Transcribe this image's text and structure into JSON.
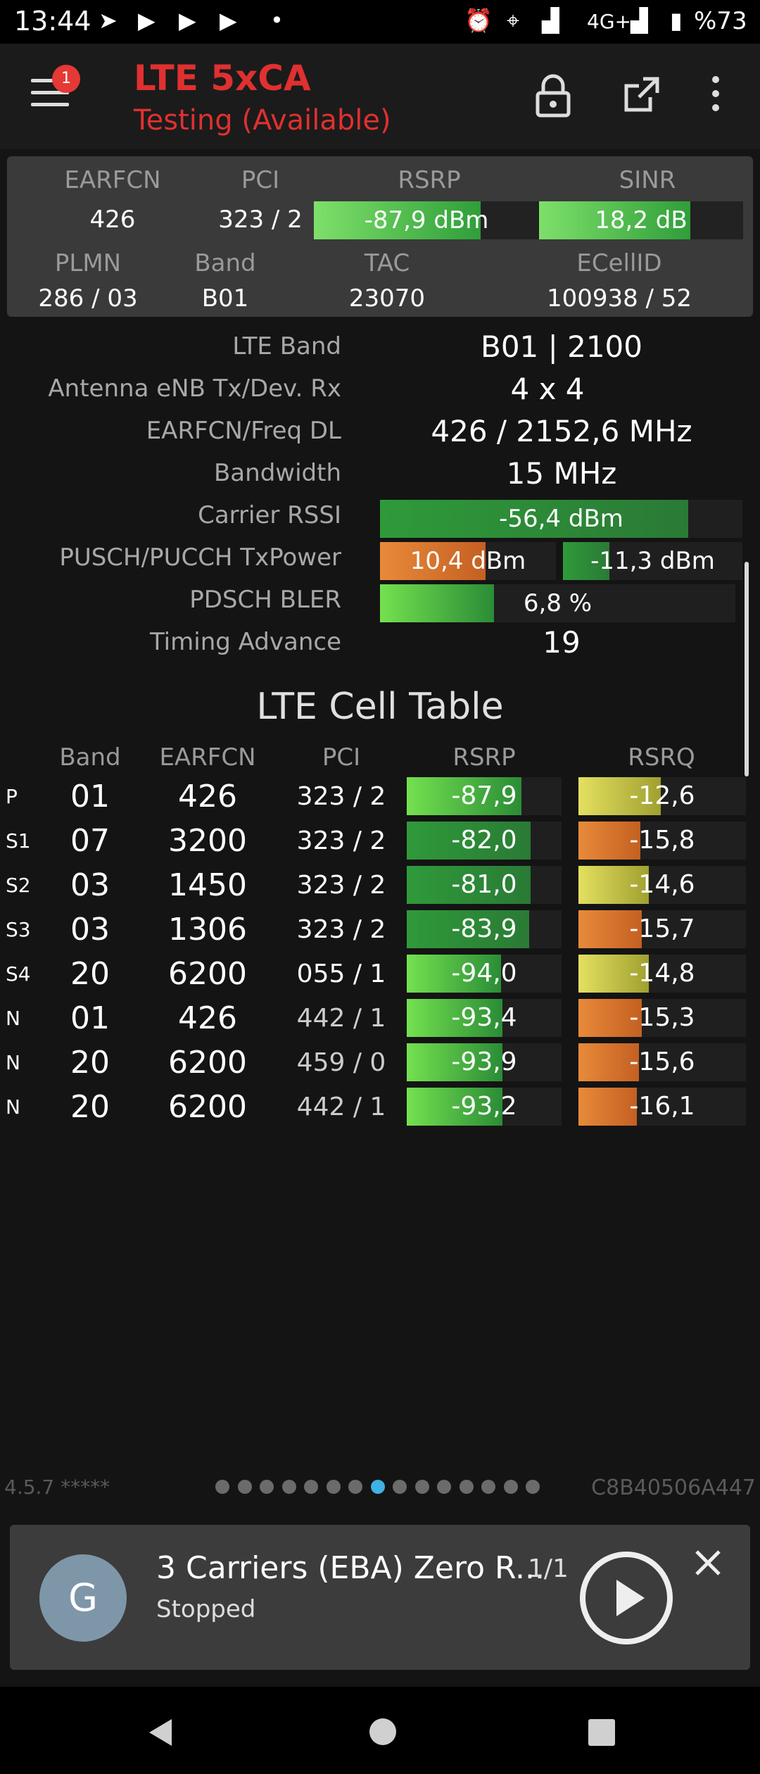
{
  "status_bar": {
    "time": "13:44",
    "network": "4G+",
    "battery": "%73",
    "icons": [
      "telegram-icon",
      "youtube-icon",
      "youtube-icon",
      "youtube-icon",
      "dot-icon",
      "alarm-icon",
      "location-icon",
      "signal-icon",
      "signal-icon",
      "battery-icon"
    ]
  },
  "app_bar": {
    "title": "LTE 5xCA",
    "subtitle": "Testing (Available)",
    "badge": "1",
    "icons": [
      "menu-icon",
      "lock-icon",
      "open-external-icon",
      "more-vert-icon"
    ]
  },
  "summary": {
    "earfcn_label": "EARFCN",
    "earfcn": "426",
    "pci_label": "PCI",
    "pci": "323 / 2",
    "rsrp_label": "RSRP",
    "rsrp": "-87,9 dBm",
    "rsrp_level": 0.74,
    "sinr_label": "SINR",
    "sinr": "18,2 dB",
    "sinr_level": 0.74,
    "plmn_label": "PLMN",
    "plmn": "286 / 03",
    "band_label": "Band",
    "band": "B01",
    "tac_label": "TAC",
    "tac": "23070",
    "ecellid_label": "ECellID",
    "ecellid": "100938 / 52"
  },
  "details": {
    "lte_band_label": "LTE Band",
    "lte_band": "B01 | 2100",
    "antenna_label": "Antenna eNB Tx/Dev. Rx",
    "antenna": "4 x 4",
    "earfcn_freq_label": "EARFCN/Freq DL",
    "earfcn_freq": "426 / 2152,6 MHz",
    "bandwidth_label": "Bandwidth",
    "bandwidth": "15 MHz",
    "rssi_label": "Carrier RSSI",
    "rssi": "-56,4 dBm",
    "rssi_level": 0.85,
    "txpower_label": "PUSCH/PUCCH TxPower",
    "pusch": "10,4 dBm",
    "pusch_level": 0.6,
    "pucch": "-11,3 dBm",
    "pucch_level": 0.26,
    "bler_label": "PDSCH BLER",
    "bler": "6,8 %",
    "bler_level": 0.32,
    "ta_label": "Timing Advance",
    "ta": "19"
  },
  "cell_table": {
    "title": "LTE Cell Table",
    "headers": [
      "Band",
      "EARFCN",
      "PCI",
      "RSRP",
      "RSRQ"
    ],
    "rows": [
      {
        "type": "P",
        "band": "01",
        "earfcn": "426",
        "pci": "323 / 2",
        "rsrp": "-87,9",
        "rsrp_level": 0.74,
        "rsrp_color": "green",
        "rsrq": "-12,6",
        "rsrq_level": 0.49,
        "rsrq_color": "yellow"
      },
      {
        "type": "S1",
        "band": "07",
        "earfcn": "3200",
        "pci": "323 / 2",
        "rsrp": "-82,0",
        "rsrp_level": 0.8,
        "rsrp_color": "green2",
        "rsrq": "-15,8",
        "rsrq_level": 0.37,
        "rsrq_color": "orange"
      },
      {
        "type": "S2",
        "band": "03",
        "earfcn": "1450",
        "pci": "323 / 2",
        "rsrp": "-81,0",
        "rsrp_level": 0.8,
        "rsrp_color": "green2",
        "rsrq": "-14,6",
        "rsrq_level": 0.42,
        "rsrq_color": "yellow"
      },
      {
        "type": "S3",
        "band": "03",
        "earfcn": "1306",
        "pci": "323 / 2",
        "rsrp": "-83,9",
        "rsrp_level": 0.79,
        "rsrp_color": "green2",
        "rsrq": "-15,7",
        "rsrq_level": 0.38,
        "rsrq_color": "orange"
      },
      {
        "type": "S4",
        "band": "20",
        "earfcn": "6200",
        "pci": "055 / 1",
        "rsrp": "-94,0",
        "rsrp_level": 0.61,
        "rsrp_color": "green",
        "rsrq": "-14,8",
        "rsrq_level": 0.42,
        "rsrq_color": "yellow"
      },
      {
        "type": "N",
        "band": "01",
        "earfcn": "426",
        "pci": "442 / 1",
        "rsrp": "-93,4",
        "rsrp_level": 0.62,
        "rsrp_color": "green",
        "rsrq": "-15,3",
        "rsrq_level": 0.38,
        "rsrq_color": "orange"
      },
      {
        "type": "N",
        "band": "20",
        "earfcn": "6200",
        "pci": "459 / 0",
        "rsrp": "-93,9",
        "rsrp_level": 0.62,
        "rsrp_color": "green",
        "rsrq": "-15,6",
        "rsrq_level": 0.36,
        "rsrq_color": "orange"
      },
      {
        "type": "N",
        "band": "20",
        "earfcn": "6200",
        "pci": "442 / 1",
        "rsrp": "-93,2",
        "rsrp_level": 0.62,
        "rsrp_color": "green",
        "rsrq": "-16,1",
        "rsrq_level": 0.35,
        "rsrq_color": "orange"
      }
    ]
  },
  "footer": {
    "version": "4.5.7 *****",
    "device_id": "C8B40506A447",
    "page_count": 15,
    "active_page": 7
  },
  "media": {
    "avatar_letter": "G",
    "title": "3 Carriers (EBA) Zero R...",
    "counter": "1/1",
    "status": "Stopped",
    "icons": [
      "play-icon",
      "close-icon"
    ]
  },
  "nav_bar": {
    "icons": [
      "back-icon",
      "home-icon",
      "recents-icon"
    ]
  }
}
